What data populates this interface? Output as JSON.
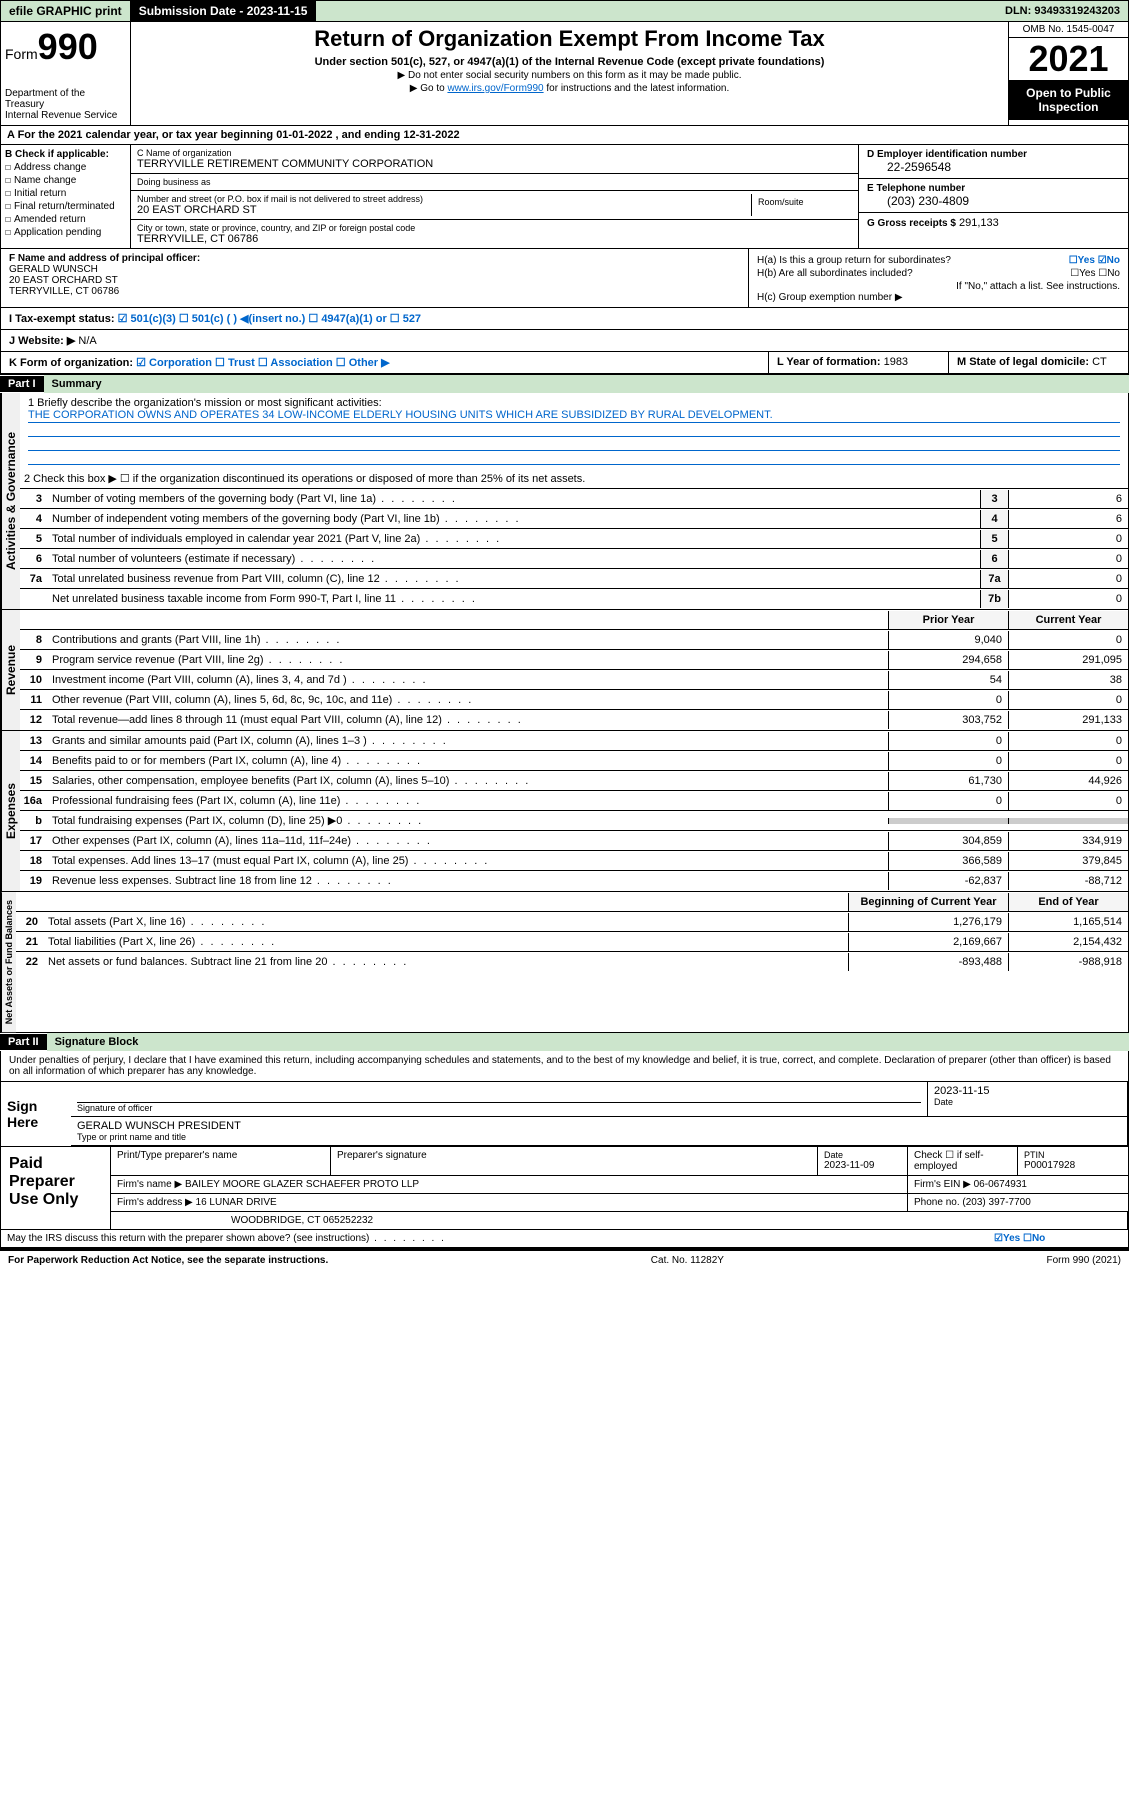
{
  "topbar": {
    "efile": "efile GRAPHIC print",
    "submission": "Submission Date - 2023-11-15",
    "dln": "DLN: 93493319243203"
  },
  "header": {
    "form_label": "Form",
    "form_num": "990",
    "dept": "Department of the Treasury",
    "irs": "Internal Revenue Service",
    "title": "Return of Organization Exempt From Income Tax",
    "sub": "Under section 501(c), 527, or 4947(a)(1) of the Internal Revenue Code (except private foundations)",
    "arrow1": "▶ Do not enter social security numbers on this form as it may be made public.",
    "arrow2_pre": "▶ Go to ",
    "arrow2_link": "www.irs.gov/Form990",
    "arrow2_post": " for instructions and the latest information.",
    "omb": "OMB No. 1545-0047",
    "year": "2021",
    "open": "Open to Public Inspection"
  },
  "row_a": "A For the 2021 calendar year, or tax year beginning 01-01-2022   , and ending 12-31-2022",
  "col_b": {
    "hdr": "B Check if applicable:",
    "opts": [
      "Address change",
      "Name change",
      "Initial return",
      "Final return/terminated",
      "Amended return",
      "Application pending"
    ]
  },
  "col_c": {
    "name_lbl": "C Name of organization",
    "name": "TERRYVILLE RETIREMENT COMMUNITY CORPORATION",
    "dba_lbl": "Doing business as",
    "dba": "",
    "addr_lbl": "Number and street (or P.O. box if mail is not delivered to street address)",
    "room_lbl": "Room/suite",
    "addr": "20 EAST ORCHARD ST",
    "city_lbl": "City or town, state or province, country, and ZIP or foreign postal code",
    "city": "TERRYVILLE, CT  06786"
  },
  "col_d": {
    "ein_lbl": "D Employer identification number",
    "ein": "22-2596548",
    "phone_lbl": "E Telephone number",
    "phone": "(203) 230-4809",
    "gross_lbl": "G Gross receipts $",
    "gross": "291,133"
  },
  "row_f": {
    "lbl": "F Name and address of principal officer:",
    "name": "GERALD WUNSCH",
    "addr1": "20 EAST ORCHARD ST",
    "addr2": "TERRYVILLE, CT  06786"
  },
  "row_h": {
    "ha_lbl": "H(a)  Is this a group return for subordinates?",
    "ha_val": "☐Yes  ☑No",
    "hb_lbl": "H(b)  Are all subordinates included?",
    "hb_val": "☐Yes  ☐No",
    "hb_note": "If \"No,\" attach a list. See instructions.",
    "hc_lbl": "H(c)  Group exemption number ▶"
  },
  "row_i": {
    "lbl": "I   Tax-exempt status:",
    "opts": "☑ 501(c)(3)   ☐ 501(c) (  ) ◀(insert no.)    ☐ 4947(a)(1) or  ☐ 527"
  },
  "row_j": {
    "lbl": "J   Website: ▶",
    "val": "N/A"
  },
  "row_k": {
    "lbl": "K Form of organization:",
    "opts": "☑ Corporation  ☐ Trust  ☐ Association  ☐ Other ▶"
  },
  "row_l": {
    "lbl": "L Year of formation:",
    "val": "1983"
  },
  "row_m": {
    "lbl": "M State of legal domicile:",
    "val": "CT"
  },
  "part1": {
    "hdr": "Part I",
    "title": "Summary",
    "q1_lbl": "1  Briefly describe the organization's mission or most significant activities:",
    "q1_val": "THE CORPORATION OWNS AND OPERATES 34 LOW-INCOME ELDERLY HOUSING UNITS WHICH ARE SUBSIDIZED BY RURAL DEVELOPMENT.",
    "q2": "2   Check this box ▶ ☐  if the organization discontinued its operations or disposed of more than 25% of its net assets.",
    "rows_gov": [
      {
        "n": "3",
        "d": "Number of voting members of the governing body (Part VI, line 1a)",
        "box": "3",
        "v": "6"
      },
      {
        "n": "4",
        "d": "Number of independent voting members of the governing body (Part VI, line 1b)",
        "box": "4",
        "v": "6"
      },
      {
        "n": "5",
        "d": "Total number of individuals employed in calendar year 2021 (Part V, line 2a)",
        "box": "5",
        "v": "0"
      },
      {
        "n": "6",
        "d": "Total number of volunteers (estimate if necessary)",
        "box": "6",
        "v": "0"
      },
      {
        "n": "7a",
        "d": "Total unrelated business revenue from Part VIII, column (C), line 12",
        "box": "7a",
        "v": "0"
      },
      {
        "n": "",
        "d": "Net unrelated business taxable income from Form 990-T, Part I, line 11",
        "box": "7b",
        "v": "0"
      }
    ],
    "col_hdr_prior": "Prior Year",
    "col_hdr_curr": "Current Year",
    "rows_rev": [
      {
        "n": "8",
        "d": "Contributions and grants (Part VIII, line 1h)",
        "p": "9,040",
        "c": "0"
      },
      {
        "n": "9",
        "d": "Program service revenue (Part VIII, line 2g)",
        "p": "294,658",
        "c": "291,095"
      },
      {
        "n": "10",
        "d": "Investment income (Part VIII, column (A), lines 3, 4, and 7d )",
        "p": "54",
        "c": "38"
      },
      {
        "n": "11",
        "d": "Other revenue (Part VIII, column (A), lines 5, 6d, 8c, 9c, 10c, and 11e)",
        "p": "0",
        "c": "0"
      },
      {
        "n": "12",
        "d": "Total revenue—add lines 8 through 11 (must equal Part VIII, column (A), line 12)",
        "p": "303,752",
        "c": "291,133"
      }
    ],
    "rows_exp": [
      {
        "n": "13",
        "d": "Grants and similar amounts paid (Part IX, column (A), lines 1–3 )",
        "p": "0",
        "c": "0"
      },
      {
        "n": "14",
        "d": "Benefits paid to or for members (Part IX, column (A), line 4)",
        "p": "0",
        "c": "0"
      },
      {
        "n": "15",
        "d": "Salaries, other compensation, employee benefits (Part IX, column (A), lines 5–10)",
        "p": "61,730",
        "c": "44,926"
      },
      {
        "n": "16a",
        "d": "Professional fundraising fees (Part IX, column (A), line 11e)",
        "p": "0",
        "c": "0"
      },
      {
        "n": "b",
        "d": "Total fundraising expenses (Part IX, column (D), line 25) ▶0",
        "p": "",
        "c": ""
      },
      {
        "n": "17",
        "d": "Other expenses (Part IX, column (A), lines 11a–11d, 11f–24e)",
        "p": "304,859",
        "c": "334,919"
      },
      {
        "n": "18",
        "d": "Total expenses. Add lines 13–17 (must equal Part IX, column (A), line 25)",
        "p": "366,589",
        "c": "379,845"
      },
      {
        "n": "19",
        "d": "Revenue less expenses. Subtract line 18 from line 12",
        "p": "-62,837",
        "c": "-88,712"
      }
    ],
    "col_hdr_beg": "Beginning of Current Year",
    "col_hdr_end": "End of Year",
    "rows_net": [
      {
        "n": "20",
        "d": "Total assets (Part X, line 16)",
        "p": "1,276,179",
        "c": "1,165,514"
      },
      {
        "n": "21",
        "d": "Total liabilities (Part X, line 26)",
        "p": "2,169,667",
        "c": "2,154,432"
      },
      {
        "n": "22",
        "d": "Net assets or fund balances. Subtract line 21 from line 20",
        "p": "-893,488",
        "c": "-988,918"
      }
    ],
    "vtab_gov": "Activities & Governance",
    "vtab_rev": "Revenue",
    "vtab_exp": "Expenses",
    "vtab_net": "Net Assets or Fund Balances"
  },
  "part2": {
    "hdr": "Part II",
    "title": "Signature Block",
    "intro": "Under penalties of perjury, I declare that I have examined this return, including accompanying schedules and statements, and to the best of my knowledge and belief, it is true, correct, and complete. Declaration of preparer (other than officer) is based on all information of which preparer has any knowledge.",
    "sign_here": "Sign Here",
    "sig_officer": "Signature of officer",
    "sig_date": "2023-11-15",
    "date_lbl": "Date",
    "officer_name": "GERALD WUNSCH  PRESIDENT",
    "officer_name_lbl": "Type or print name and title",
    "paid": "Paid Preparer Use Only",
    "prep_name_lbl": "Print/Type preparer's name",
    "prep_sig_lbl": "Preparer's signature",
    "prep_date": "2023-11-09",
    "prep_check": "Check ☐ if self-employed",
    "ptin_lbl": "PTIN",
    "ptin": "P00017928",
    "firm_name_lbl": "Firm's name    ▶",
    "firm_name": "BAILEY MOORE GLAZER SCHAEFER PROTO LLP",
    "firm_ein_lbl": "Firm's EIN ▶",
    "firm_ein": "06-0674931",
    "firm_addr_lbl": "Firm's address ▶",
    "firm_addr1": "16 LUNAR DRIVE",
    "firm_addr2": "WOODBRIDGE, CT  065252232",
    "firm_phone_lbl": "Phone no.",
    "firm_phone": "(203) 397-7700",
    "may_irs": "May the IRS discuss this return with the preparer shown above? (see instructions)",
    "may_irs_val": "☑Yes   ☐No"
  },
  "footer": {
    "left": "For Paperwork Reduction Act Notice, see the separate instructions.",
    "mid": "Cat. No. 11282Y",
    "right": "Form 990 (2021)"
  }
}
